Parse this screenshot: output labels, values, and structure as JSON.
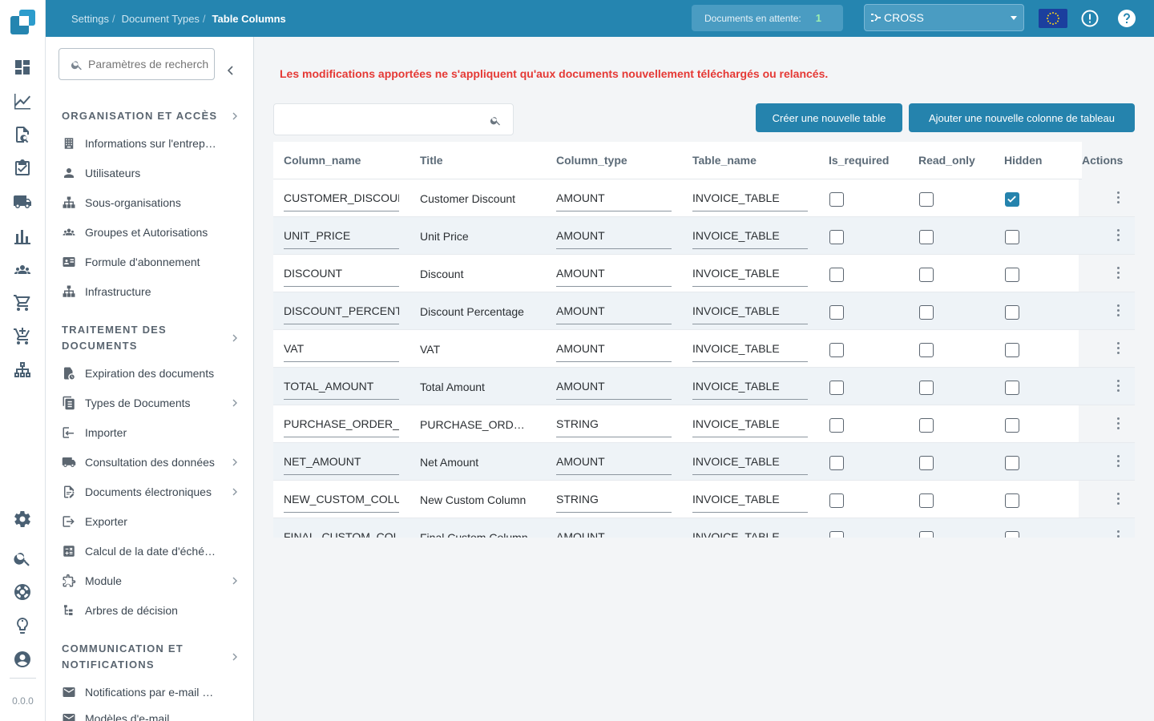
{
  "breadcrumb": {
    "items": [
      "Settings",
      "Document Types"
    ],
    "current": "Table Columns"
  },
  "header": {
    "pending_label": "Documents en attente:",
    "pending_count": "1",
    "company": "CROSS"
  },
  "rail": {
    "version": "0.0.0"
  },
  "settings_panel": {
    "search_placeholder": "Paramètres de recherche",
    "sections": [
      {
        "title_line1": "ORGANISATION ET ACCÈS",
        "title_line2": "",
        "items": [
          "Informations sur l'entreprise",
          "Utilisateurs",
          "Sous-organisations",
          "Groupes et Autorisations",
          "Formule d'abonnement",
          "Infrastructure"
        ]
      },
      {
        "title_line1": "TRAITEMENT DES",
        "title_line2": "DOCUMENTS",
        "items": [
          "Expiration des documents",
          "Types de Documents",
          "Importer",
          "Consultation des données",
          "Documents électroniques",
          "Exporter",
          "Calcul de la date d'échéance",
          "Module",
          "Arbres de décision"
        ]
      },
      {
        "title_line1": "COMMUNICATION ET",
        "title_line2": "NOTIFICATIONS",
        "items": [
          "Notifications par e-mail pour",
          "Modèles d'e-mail"
        ]
      }
    ]
  },
  "main": {
    "warning": "Les modifications apportées ne s'appliquent qu'aux documents nouvellement téléchargés ou relancés.",
    "create_table_button": "Créer une nouvelle table",
    "add_column_button": "Ajouter une nouvelle colonne de tableau",
    "columns": [
      "Column_name",
      "Title",
      "Column_type",
      "Table_name",
      "Is_required",
      "Read_only",
      "Hidden",
      "Actions"
    ],
    "rows": [
      {
        "column_name": "CUSTOMER_DISCOUNT",
        "title": "Customer Discount",
        "column_type": "AMOUNT",
        "table_name": "INVOICE_TABLE",
        "is_required": false,
        "read_only": false,
        "hidden": true
      },
      {
        "column_name": "UNIT_PRICE",
        "title": "Unit Price",
        "column_type": "AMOUNT",
        "table_name": "INVOICE_TABLE",
        "is_required": false,
        "read_only": false,
        "hidden": false
      },
      {
        "column_name": "DISCOUNT",
        "title": "Discount",
        "column_type": "AMOUNT",
        "table_name": "INVOICE_TABLE",
        "is_required": false,
        "read_only": false,
        "hidden": false
      },
      {
        "column_name": "DISCOUNT_PERCENTAGE",
        "title": "Discount Percentage",
        "column_type": "AMOUNT",
        "table_name": "INVOICE_TABLE",
        "is_required": false,
        "read_only": false,
        "hidden": false
      },
      {
        "column_name": "VAT",
        "title": "VAT",
        "column_type": "AMOUNT",
        "table_name": "INVOICE_TABLE",
        "is_required": false,
        "read_only": false,
        "hidden": false
      },
      {
        "column_name": "TOTAL_AMOUNT",
        "title": "Total Amount",
        "column_type": "AMOUNT",
        "table_name": "INVOICE_TABLE",
        "is_required": false,
        "read_only": false,
        "hidden": false
      },
      {
        "column_name": "PURCHASE_ORDER_NUMBER",
        "title": "PURCHASE_ORDER_NUMBER",
        "column_type": "STRING",
        "table_name": "INVOICE_TABLE",
        "is_required": false,
        "read_only": false,
        "hidden": false
      },
      {
        "column_name": "NET_AMOUNT",
        "title": "Net Amount",
        "column_type": "AMOUNT",
        "table_name": "INVOICE_TABLE",
        "is_required": false,
        "read_only": false,
        "hidden": false
      },
      {
        "column_name": "NEW_CUSTOM_COLUMN",
        "title": "New Custom Column",
        "column_type": "STRING",
        "table_name": "INVOICE_TABLE",
        "is_required": false,
        "read_only": false,
        "hidden": false
      },
      {
        "column_name": "FINAL_CUSTOM_COLUMN",
        "title": "Final Custom Column",
        "column_type": "AMOUNT",
        "table_name": "INVOICE_TABLE",
        "is_required": false,
        "read_only": false,
        "hidden": false
      }
    ]
  },
  "colors": {
    "primary": "#2583ad",
    "topbar": "#2585b0",
    "warning": "#e53935",
    "pending_count": "#9df0b0"
  }
}
